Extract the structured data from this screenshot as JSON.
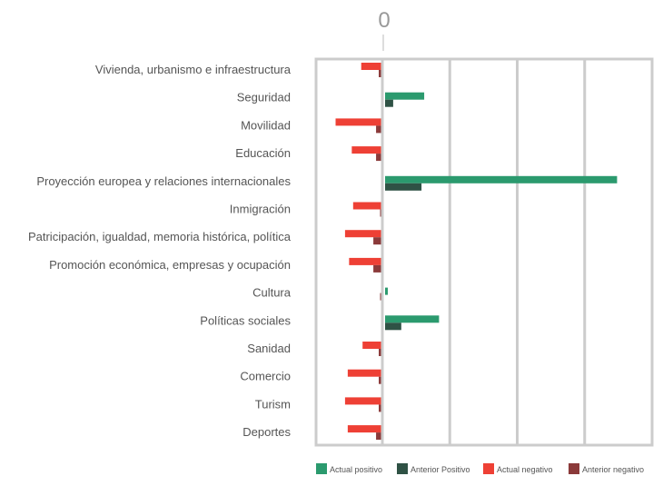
{
  "chart_data": {
    "type": "bar",
    "orientation": "horizontal",
    "zero_label": "0",
    "categories": [
      "Vivienda, urbanismo e infraestructura",
      "Seguridad",
      "Movilidad",
      "Educación",
      "Proyección europea y relaciones internacionales",
      "Inmigración",
      "Patricipación, igualdad, memoria histórica, política",
      "Promoción económica, empresas y ocupación",
      "Cultura",
      "Políticas sociales",
      "Sanidad",
      "Comercio",
      "Turism",
      "Deportes"
    ],
    "series": [
      {
        "name": "Actual positivo",
        "color": "#2b9a6e",
        "values": [
          0,
          1.45,
          0,
          0,
          8.6,
          0,
          0,
          0,
          0.1,
          2.0,
          0,
          0,
          0,
          0
        ]
      },
      {
        "name": "Anterior Positivo",
        "color": "#2f5245",
        "values": [
          0,
          0.3,
          0,
          0,
          1.35,
          0,
          0,
          0,
          0,
          0.6,
          0,
          0,
          0,
          0
        ]
      },
      {
        "name": "Actual negativo",
        "color": "#ee4035",
        "values": [
          -0.75,
          0,
          -1.7,
          -1.1,
          0,
          -1.05,
          -1.35,
          -1.2,
          0,
          0,
          -0.7,
          -1.25,
          -1.35,
          -1.25
        ]
      },
      {
        "name": "Anterior negativo",
        "color": "#8b3a3a",
        "values": [
          -0.1,
          0,
          -0.2,
          -0.2,
          0,
          -0.05,
          -0.3,
          -0.3,
          -0.05,
          0,
          -0.1,
          -0.1,
          -0.1,
          -0.2
        ]
      }
    ],
    "xlim": [
      -2.5,
      10
    ],
    "grid": true,
    "legend_position": "bottom-right"
  }
}
